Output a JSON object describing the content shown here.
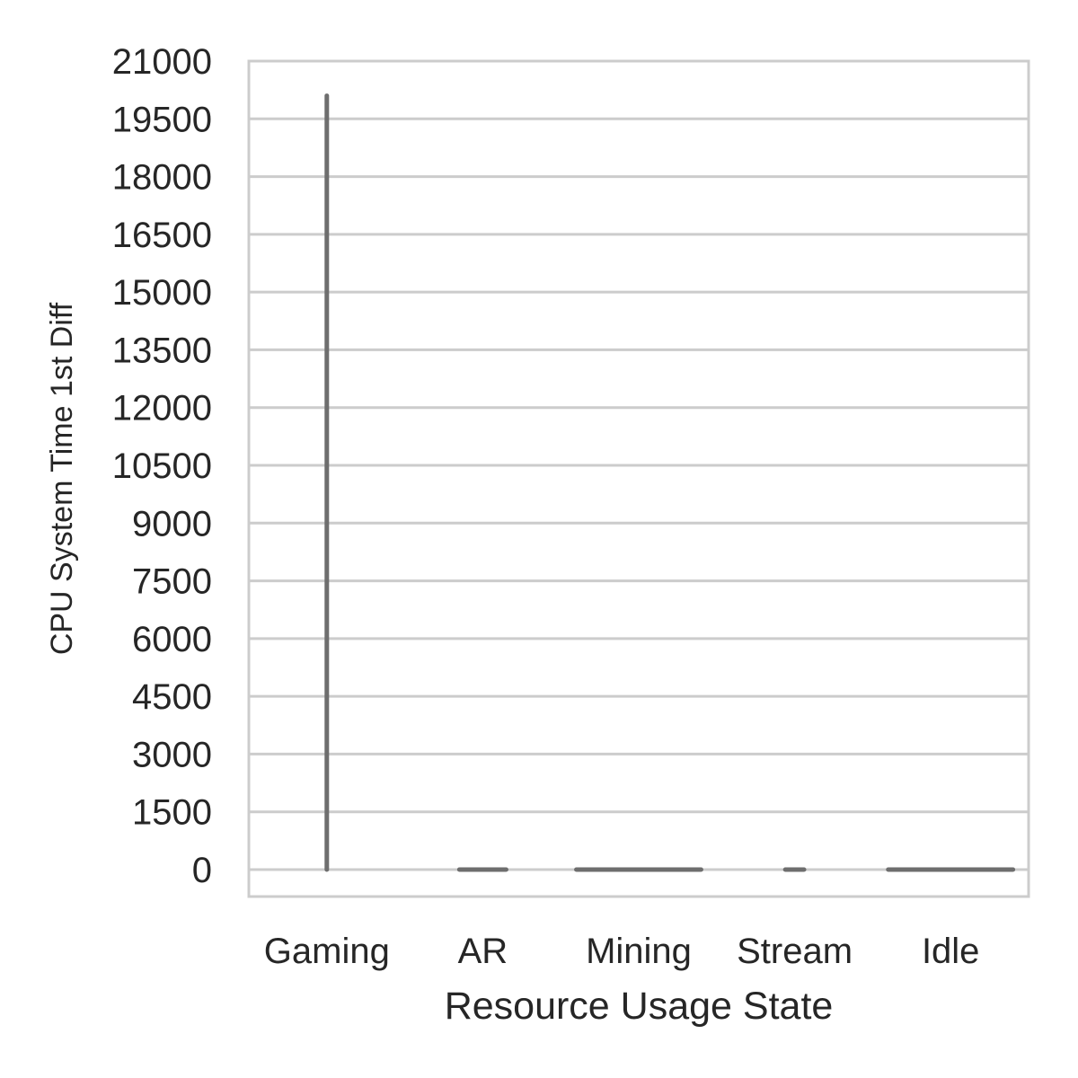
{
  "chart_data": {
    "type": "violin",
    "title": "",
    "xlabel": "Resource Usage State",
    "ylabel": "CPU System Time 1st Diff",
    "categories": [
      "Gaming",
      "AR",
      "Mining",
      "Stream",
      "Idle"
    ],
    "ylim": [
      -700,
      21000
    ],
    "yticks": [
      "0",
      "1500",
      "3000",
      "4500",
      "6000",
      "7500",
      "9000",
      "10500",
      "12000",
      "13500",
      "15000",
      "16500",
      "18000",
      "19500",
      "21000"
    ],
    "grid": "horizontal",
    "colors": {
      "mark": "#6e6e6e",
      "grid": "#cccccc",
      "frame": "#cccccc",
      "text": "#262626"
    },
    "series": [
      {
        "category": "Gaming",
        "min": 0,
        "max": 20100,
        "spread": 0
      },
      {
        "category": "AR",
        "min": 0,
        "max": 0,
        "spread": 0.3
      },
      {
        "category": "Mining",
        "min": 0,
        "max": 0,
        "spread": 0.8
      },
      {
        "category": "Stream",
        "min": 0,
        "max": 0,
        "spread": 0.12
      },
      {
        "category": "Idle",
        "min": 0,
        "max": 0,
        "spread": 0.8
      }
    ]
  }
}
